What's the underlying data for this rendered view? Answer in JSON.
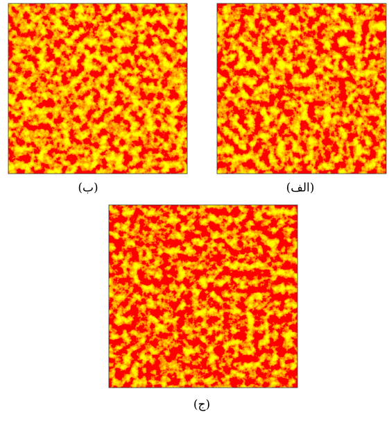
{
  "figures": [
    {
      "caption": "(الف)"
    },
    {
      "caption": "(ب)"
    },
    {
      "caption": "(ج)"
    }
  ]
}
